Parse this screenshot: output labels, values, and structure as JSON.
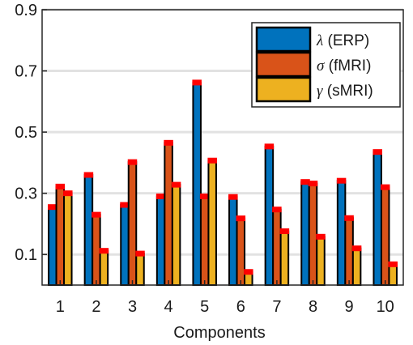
{
  "chart_data": {
    "type": "bar",
    "title": "",
    "xlabel": "Components",
    "ylabel": "",
    "ylim": [
      0,
      0.9
    ],
    "yticks": [
      "0.1",
      "0.3",
      "0.5",
      "0.7",
      "0.9"
    ],
    "ytick_values": [
      0.1,
      0.3,
      0.5,
      0.7,
      0.9
    ],
    "categories": [
      "1",
      "2",
      "3",
      "4",
      "5",
      "6",
      "7",
      "8",
      "9",
      "10"
    ],
    "grid": true,
    "legend_position": "top-right",
    "series": [
      {
        "name": "λ (ERP)",
        "symbol": "λ",
        "label": "(ERP)",
        "color": "#0072BD",
        "values": [
          0.255,
          0.36,
          0.262,
          0.29,
          0.662,
          0.288,
          0.453,
          0.337,
          0.341,
          0.435
        ]
      },
      {
        "name": "σ (fMRI)",
        "symbol": "σ",
        "label": "(fMRI)",
        "color": "#D95319",
        "values": [
          0.322,
          0.23,
          0.402,
          0.465,
          0.29,
          0.218,
          0.247,
          0.332,
          0.219,
          0.32
        ]
      },
      {
        "name": "γ (sMRI)",
        "symbol": "γ",
        "label": "(sMRI)",
        "color": "#EDB120",
        "values": [
          0.3,
          0.112,
          0.103,
          0.328,
          0.407,
          0.043,
          0.176,
          0.158,
          0.12,
          0.068
        ]
      }
    ],
    "marker_color": "#FF0000"
  }
}
